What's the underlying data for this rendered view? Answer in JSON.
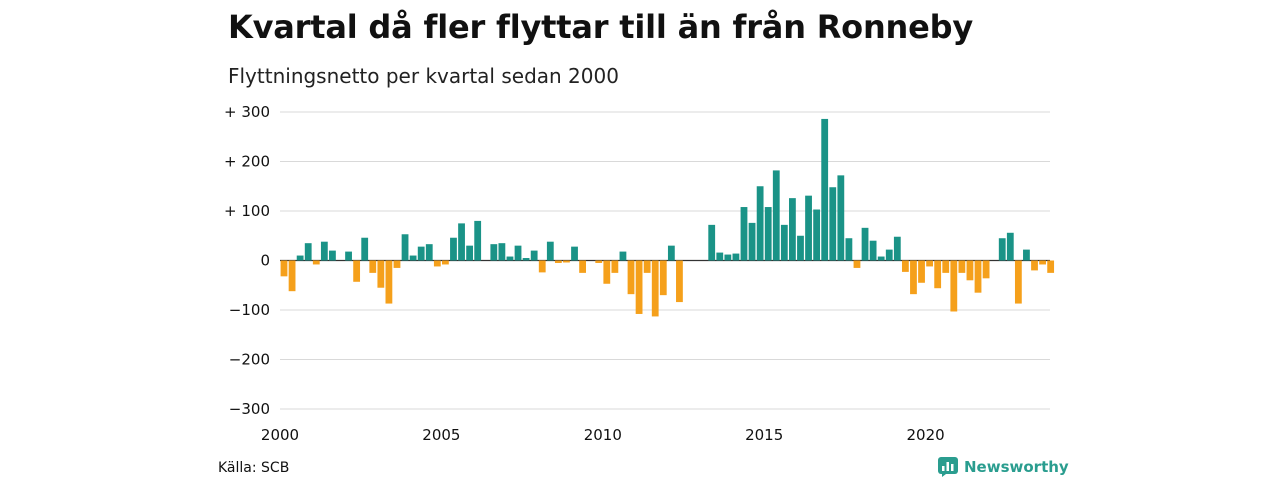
{
  "title": "Kvartal då fler flyttar till än från Ronneby",
  "subtitle": "Flyttningsnetto per kvartal sedan 2000",
  "source": "Källa: SCB",
  "brand": {
    "name": "Newsworthy",
    "icon": "bar-chart-icon",
    "color": "#2a9d8f"
  },
  "chart_data": {
    "type": "bar",
    "x_start": "2000 Q1",
    "quarters_per_year": 4,
    "ylim": [
      -300,
      300
    ],
    "yticks": [
      300,
      200,
      100,
      0,
      -100,
      -200,
      -300
    ],
    "ytick_labels": [
      "+ 300",
      "+ 200",
      "+ 100",
      "0",
      "−100",
      "−200",
      "−300"
    ],
    "xticks": [
      2000,
      2005,
      2010,
      2015,
      2020
    ],
    "colors": {
      "positive": "#1a9387",
      "negative": "#f5a01b"
    },
    "grid": true,
    "values": [
      -32,
      -62,
      10,
      35,
      -8,
      38,
      20,
      0,
      18,
      -43,
      46,
      -25,
      -55,
      -87,
      -15,
      53,
      10,
      28,
      33,
      -12,
      -8,
      46,
      75,
      30,
      80,
      0,
      33,
      35,
      8,
      30,
      5,
      20,
      -24,
      38,
      -5,
      -4,
      28,
      -25,
      0,
      -5,
      -47,
      -25,
      18,
      -68,
      -108,
      -25,
      -113,
      -70,
      30,
      -84,
      0,
      0,
      0,
      72,
      16,
      12,
      14,
      108,
      76,
      150,
      108,
      182,
      72,
      126,
      50,
      131,
      103,
      286,
      148,
      172,
      45,
      -15,
      66,
      40,
      8,
      22,
      48,
      -23,
      -68,
      -45,
      -12,
      -56,
      -25,
      -103,
      -25,
      -40,
      -65,
      -36,
      0,
      45,
      56,
      -87,
      22,
      -20,
      -8,
      -25
    ]
  }
}
